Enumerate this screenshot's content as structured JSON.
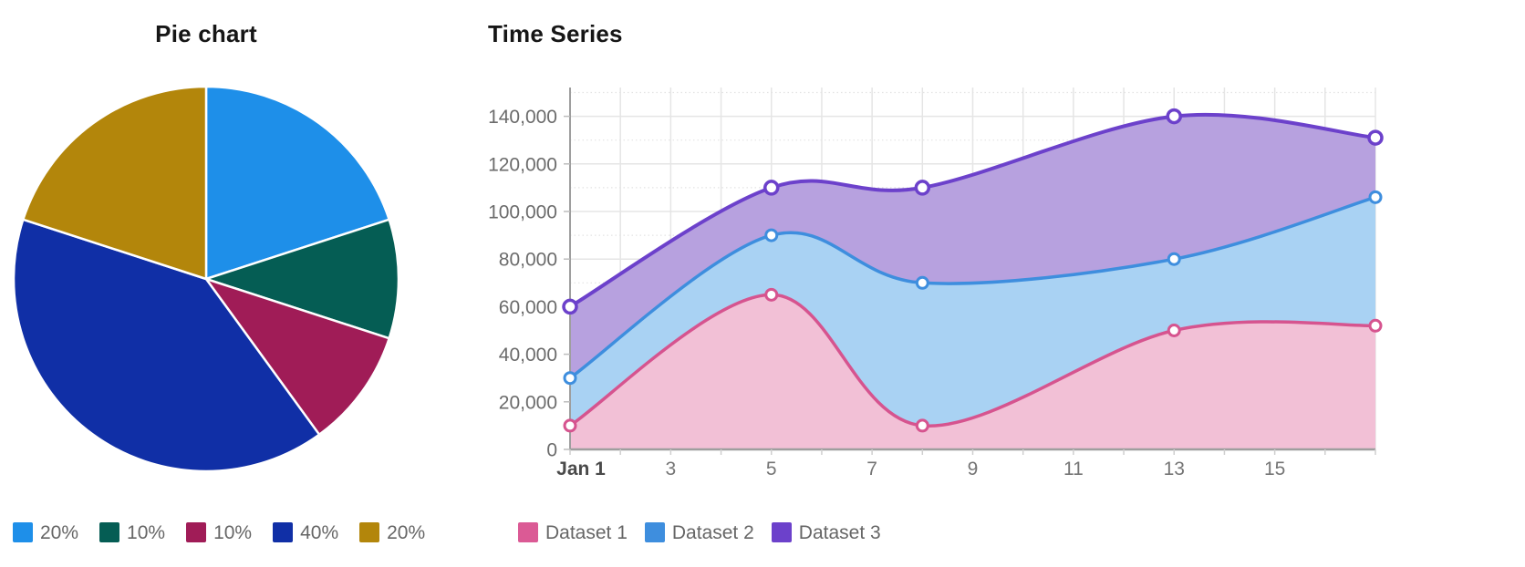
{
  "pie": {
    "title": "Pie chart",
    "legend": [
      {
        "label": "20%",
        "color": "#1E8FE9"
      },
      {
        "label": "10%",
        "color": "#055D54"
      },
      {
        "label": "10%",
        "color": "#A01C57"
      },
      {
        "label": "40%",
        "color": "#102FA6"
      },
      {
        "label": "20%",
        "color": "#B3860B"
      }
    ],
    "chart_data": {
      "type": "pie",
      "title": "Pie chart",
      "labels": [
        "20%",
        "10%",
        "10%",
        "40%",
        "20%"
      ],
      "values": [
        20,
        10,
        10,
        40,
        20
      ],
      "colors": [
        "#1E8FE9",
        "#055D54",
        "#A01C57",
        "#102FA6",
        "#B3860B"
      ],
      "start_angle": "top",
      "direction": "clockwise",
      "slice_border_color": "#ffffff",
      "legend_position": "bottom"
    }
  },
  "timeseries": {
    "title": "Time Series",
    "legend": [
      {
        "label": "Dataset 1",
        "color": "#DB5A95"
      },
      {
        "label": "Dataset 2",
        "color": "#3E8EDE"
      },
      {
        "label": "Dataset 3",
        "color": "#6C41CB"
      }
    ],
    "chart_data": {
      "type": "area",
      "title": "Time Series",
      "x_unit": "day of January",
      "x_tick_labels": [
        "Jan 1",
        "3",
        "5",
        "7",
        "9",
        "11",
        "13",
        "15"
      ],
      "x_tick_days": [
        1,
        3,
        5,
        7,
        9,
        11,
        13,
        15
      ],
      "x_range": [
        1,
        17
      ],
      "y_tick_labels": [
        "0",
        "20,000",
        "40,000",
        "60,000",
        "80,000",
        "100,000",
        "120,000",
        "140,000"
      ],
      "y_tick_values": [
        0,
        20000,
        40000,
        60000,
        80000,
        100000,
        120000,
        140000
      ],
      "y_range": [
        0,
        152000
      ],
      "grid": true,
      "legend_position": "bottom",
      "series": [
        {
          "name": "Dataset 1",
          "x": [
            1,
            5,
            8,
            13,
            17
          ],
          "values": [
            10000,
            65000,
            10000,
            50000,
            52000
          ],
          "line_color": "#D6548F",
          "fill_color": "#F2C0D6"
        },
        {
          "name": "Dataset 2",
          "x": [
            1,
            5,
            8,
            13,
            17
          ],
          "values": [
            30000,
            90000,
            70000,
            80000,
            106000
          ],
          "line_color": "#3E8EDE",
          "fill_color": "#A9D2F3"
        },
        {
          "name": "Dataset 3",
          "x": [
            1,
            5,
            8,
            13,
            17
          ],
          "values": [
            60000,
            110000,
            110000,
            140000,
            131000
          ],
          "line_color": "#6C41CB",
          "fill_color": "#B7A1DF"
        }
      ]
    }
  }
}
